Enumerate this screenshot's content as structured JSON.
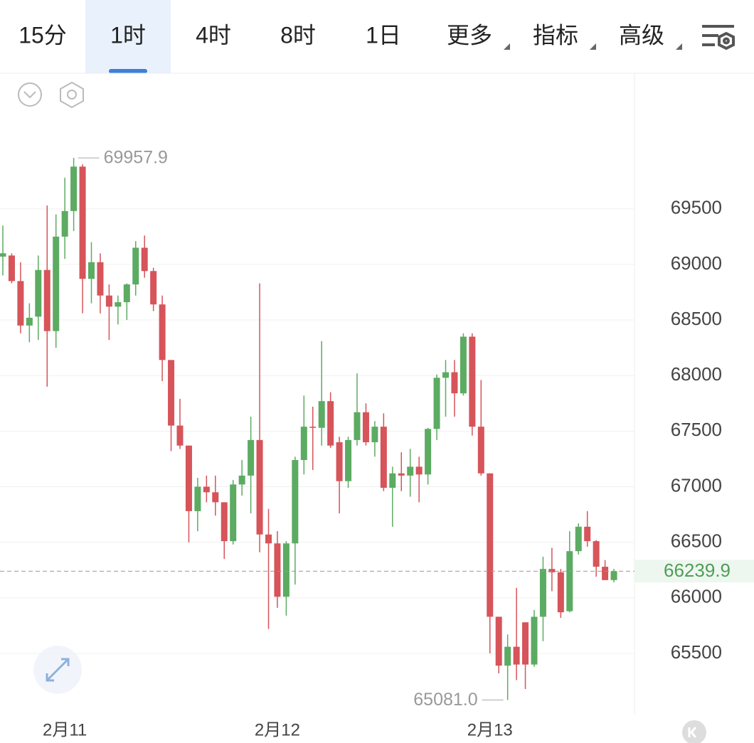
{
  "tabs": [
    "15分",
    "1时",
    "4时",
    "8时",
    "1日",
    "更多",
    "指标",
    "高级"
  ],
  "active_tab": 1,
  "dropdown_tabs": [
    5,
    6,
    7
  ],
  "chart_data": {
    "type": "candlestick",
    "categories": [
      null,
      null,
      null,
      null,
      null,
      null,
      null,
      "2月11",
      null,
      null,
      null,
      null,
      null,
      null,
      null,
      null,
      null,
      null,
      null,
      null,
      null,
      null,
      null,
      null,
      null,
      null,
      null,
      null,
      null,
      null,
      null,
      "2月12",
      null,
      null,
      null,
      null,
      null,
      null,
      null,
      null,
      null,
      null,
      null,
      null,
      null,
      null,
      null,
      null,
      null,
      null,
      null,
      null,
      null,
      null,
      null,
      "2月13",
      null,
      null,
      null,
      null,
      null,
      null,
      null,
      null,
      null,
      null,
      null,
      null,
      null,
      null
    ],
    "open": [
      69070,
      69080,
      68850,
      68450,
      68530,
      68950,
      68400,
      69250,
      69480,
      69880,
      68870,
      69020,
      68720,
      68620,
      68660,
      68820,
      69150,
      68940,
      68640,
      68140,
      67550,
      67370,
      66780,
      67000,
      66950,
      66860,
      66510,
      67020,
      67100,
      67420,
      66570,
      66490,
      66010,
      66490,
      67240,
      67540,
      67530,
      67770,
      67400,
      67050,
      67420,
      67670,
      67400,
      67540,
      66990,
      67120,
      67100,
      67180,
      67110,
      67520,
      67980,
      68030,
      67840,
      68350,
      67540,
      67120,
      65830,
      65390,
      65560,
      65780,
      65400,
      65830,
      66260,
      66230,
      65880,
      66420,
      66640,
      66510,
      66280,
      66160
    ],
    "high": [
      69350,
      69100,
      69020,
      68650,
      69080,
      69530,
      69450,
      69780,
      69957.9,
      69900,
      69200,
      69100,
      68820,
      68720,
      68830,
      69210,
      69260,
      68970,
      68720,
      68140,
      67790,
      67370,
      67080,
      67100,
      67100,
      66860,
      67060,
      67240,
      67630,
      68830,
      66800,
      66600,
      66510,
      67270,
      67820,
      67720,
      68310,
      67850,
      67450,
      67450,
      68020,
      67750,
      67590,
      67660,
      67180,
      67310,
      67340,
      67270,
      67530,
      68010,
      68140,
      68140,
      68380,
      68380,
      67960,
      67120,
      65830,
      65670,
      66090,
      65780,
      65890,
      66370,
      66450,
      66260,
      66600,
      66670,
      66780,
      66520,
      66340,
      66260
    ],
    "low": [
      68900,
      68830,
      68380,
      68300,
      68320,
      67900,
      68250,
      69050,
      69300,
      68560,
      68650,
      68560,
      68320,
      68460,
      68500,
      68720,
      68880,
      68580,
      67950,
      67320,
      67340,
      66500,
      66600,
      66860,
      66740,
      66350,
      66480,
      66920,
      66760,
      66410,
      65720,
      65910,
      65840,
      66120,
      67110,
      67150,
      67370,
      67350,
      66760,
      66990,
      67370,
      67370,
      67270,
      66960,
      66640,
      66960,
      66910,
      66860,
      67020,
      67420,
      67630,
      67630,
      67820,
      67460,
      67100,
      65500,
      65320,
      65081,
      65260,
      65180,
      65380,
      65610,
      66060,
      65820,
      65870,
      66390,
      66460,
      66190,
      66160,
      66140
    ],
    "close": [
      69100,
      68850,
      68450,
      68520,
      68950,
      68400,
      69250,
      69480,
      69880,
      68870,
      69020,
      68720,
      68620,
      68660,
      68820,
      69150,
      68940,
      68640,
      68140,
      67550,
      67370,
      66780,
      67000,
      66950,
      66860,
      66510,
      67020,
      67100,
      67420,
      66570,
      66490,
      66010,
      66490,
      67240,
      67540,
      67530,
      67770,
      67370,
      67050,
      67420,
      67670,
      67400,
      67540,
      66990,
      67120,
      67100,
      67180,
      67110,
      67520,
      67980,
      68030,
      67840,
      68350,
      67540,
      67120,
      65830,
      65390,
      65560,
      65400,
      65400,
      65830,
      66260,
      66230,
      65870,
      66420,
      66640,
      66510,
      66280,
      66160,
      66239.9
    ],
    "up_color": "#5cab62",
    "down_color": "#d6545a",
    "ylim": [
      64950,
      70720
    ],
    "yticks": [
      65500,
      66000,
      66500,
      67000,
      67500,
      68000,
      68500,
      69000,
      69500
    ],
    "grid": true,
    "annotations": [
      {
        "value": 69957.9,
        "label": "69957.9",
        "index": 8
      },
      {
        "value": 65081,
        "label": "65081.0",
        "index": 57
      }
    ],
    "last_price": {
      "value": 66239.9,
      "label": "66239.9"
    }
  }
}
